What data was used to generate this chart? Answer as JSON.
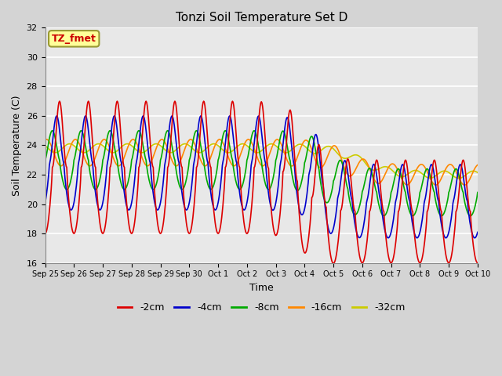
{
  "title": "Tonzi Soil Temperature Set D",
  "xlabel": "Time",
  "ylabel": "Soil Temperature (C)",
  "ylim": [
    16,
    32
  ],
  "xlim": [
    0,
    15
  ],
  "fig_facecolor": "#d4d4d4",
  "plot_bg_color": "#e8e8e8",
  "annotation_text": "TZ_fmet",
  "annotation_color": "#cc0000",
  "annotation_bg": "#ffff99",
  "annotation_border": "#999933",
  "series_colors": {
    "-2cm": "#dd0000",
    "-4cm": "#0000cc",
    "-8cm": "#00aa00",
    "-16cm": "#ff8800",
    "-32cm": "#cccc00"
  },
  "x_tick_labels": [
    "Sep 25",
    "Sep 26",
    "Sep 27",
    "Sep 28",
    "Sep 29",
    "Sep 30",
    "Oct 1",
    "Oct 2",
    "Oct 3",
    "Oct 4",
    "Oct 5",
    "Oct 6",
    "Oct 7",
    "Oct 8",
    "Oct 9",
    "Oct 10"
  ],
  "x_tick_positions": [
    0,
    1,
    2,
    3,
    4,
    5,
    6,
    7,
    8,
    9,
    10,
    11,
    12,
    13,
    14,
    15
  ],
  "y_ticks": [
    16,
    18,
    20,
    22,
    24,
    26,
    28,
    30,
    32
  ],
  "grid_color": "#ffffff",
  "linewidth": 1.2
}
